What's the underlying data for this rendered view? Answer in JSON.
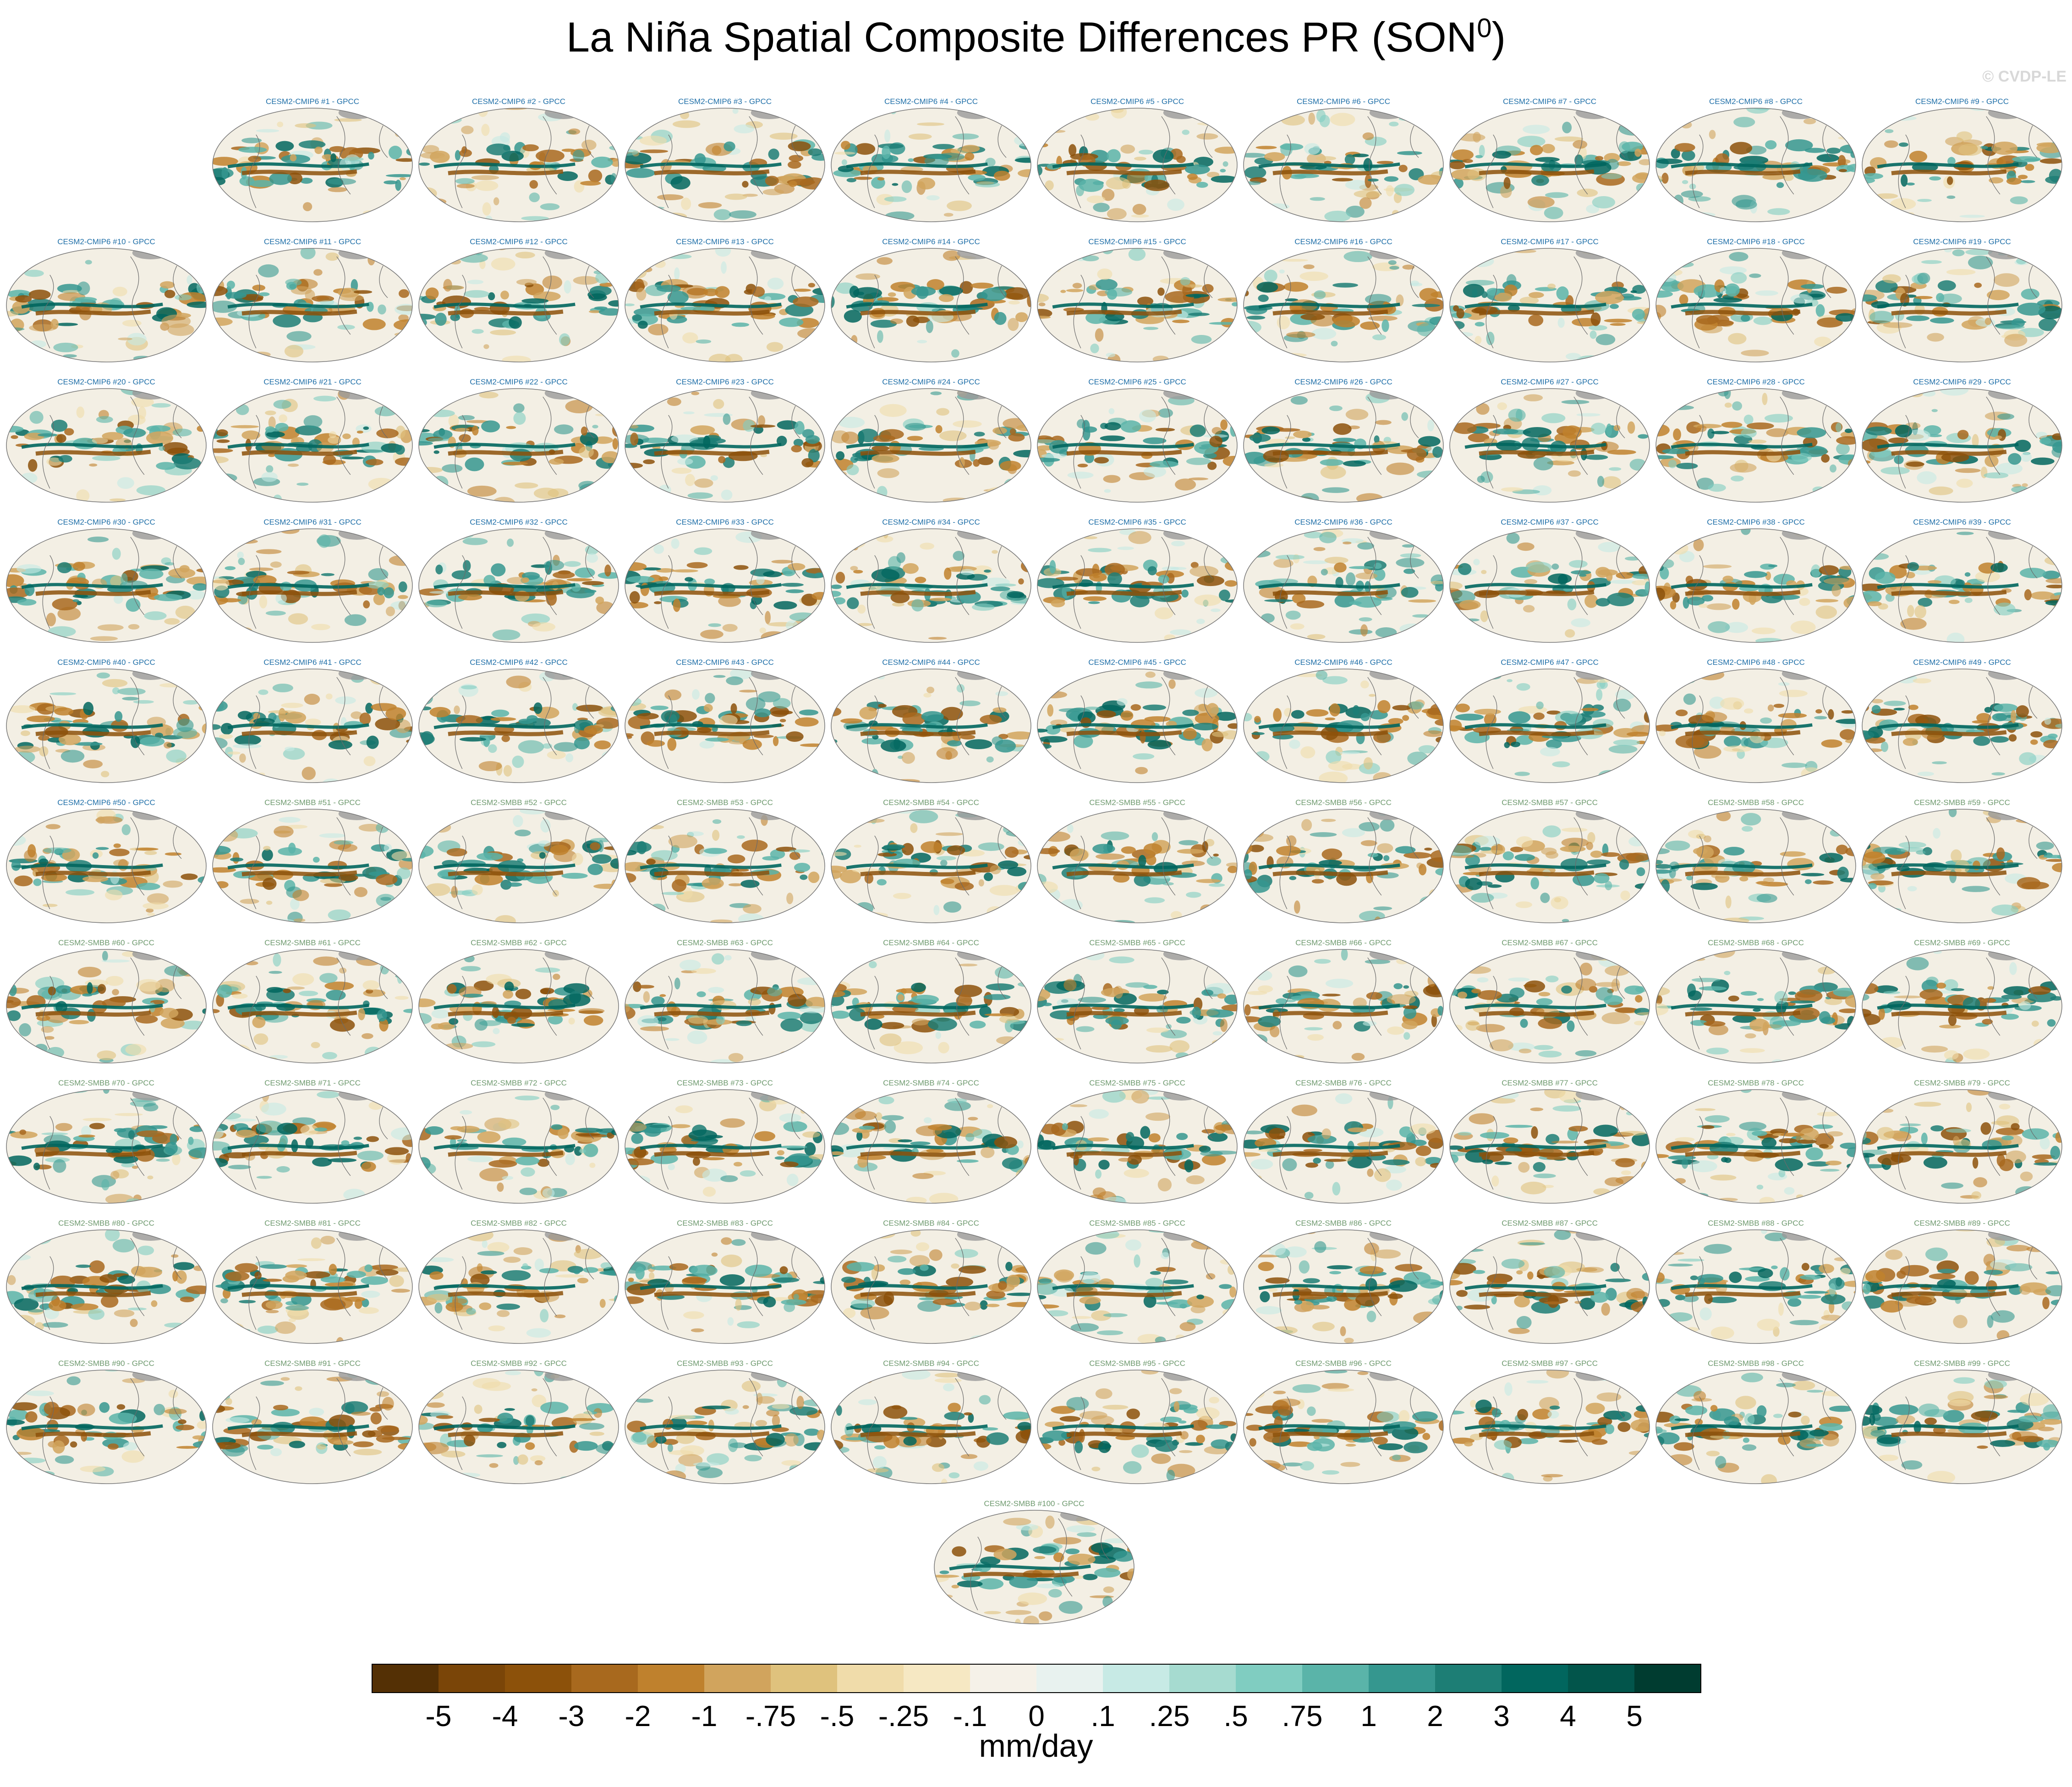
{
  "figure": {
    "title_main": "La Niña Spatial Composite Differences PR (SON",
    "title_sup": "0",
    "title_end": ")",
    "watermark": "© CVDP-LE",
    "units": "mm/day"
  },
  "colors": {
    "cmip6_title": "#1f6fa8",
    "smbb_title": "#6f9a6f"
  },
  "panels": [
    {
      "label": "CESM2-CMIP6 #1 - GPCC",
      "ens": "CMIP6"
    },
    {
      "label": "CESM2-CMIP6 #2 - GPCC",
      "ens": "CMIP6"
    },
    {
      "label": "CESM2-CMIP6 #3 - GPCC",
      "ens": "CMIP6"
    },
    {
      "label": "CESM2-CMIP6 #4 - GPCC",
      "ens": "CMIP6"
    },
    {
      "label": "CESM2-CMIP6 #5 - GPCC",
      "ens": "CMIP6"
    },
    {
      "label": "CESM2-CMIP6 #6 - GPCC",
      "ens": "CMIP6"
    },
    {
      "label": "CESM2-CMIP6 #7 - GPCC",
      "ens": "CMIP6"
    },
    {
      "label": "CESM2-CMIP6 #8 - GPCC",
      "ens": "CMIP6"
    },
    {
      "label": "CESM2-CMIP6 #9 - GPCC",
      "ens": "CMIP6"
    },
    {
      "label": "CESM2-CMIP6 #10 - GPCC",
      "ens": "CMIP6"
    },
    {
      "label": "CESM2-CMIP6 #11 - GPCC",
      "ens": "CMIP6"
    },
    {
      "label": "CESM2-CMIP6 #12 - GPCC",
      "ens": "CMIP6"
    },
    {
      "label": "CESM2-CMIP6 #13 - GPCC",
      "ens": "CMIP6"
    },
    {
      "label": "CESM2-CMIP6 #14 - GPCC",
      "ens": "CMIP6"
    },
    {
      "label": "CESM2-CMIP6 #15 - GPCC",
      "ens": "CMIP6"
    },
    {
      "label": "CESM2-CMIP6 #16 - GPCC",
      "ens": "CMIP6"
    },
    {
      "label": "CESM2-CMIP6 #17 - GPCC",
      "ens": "CMIP6"
    },
    {
      "label": "CESM2-CMIP6 #18 - GPCC",
      "ens": "CMIP6"
    },
    {
      "label": "CESM2-CMIP6 #19 - GPCC",
      "ens": "CMIP6"
    },
    {
      "label": "CESM2-CMIP6 #20 - GPCC",
      "ens": "CMIP6"
    },
    {
      "label": "CESM2-CMIP6 #21 - GPCC",
      "ens": "CMIP6"
    },
    {
      "label": "CESM2-CMIP6 #22 - GPCC",
      "ens": "CMIP6"
    },
    {
      "label": "CESM2-CMIP6 #23 - GPCC",
      "ens": "CMIP6"
    },
    {
      "label": "CESM2-CMIP6 #24 - GPCC",
      "ens": "CMIP6"
    },
    {
      "label": "CESM2-CMIP6 #25 - GPCC",
      "ens": "CMIP6"
    },
    {
      "label": "CESM2-CMIP6 #26 - GPCC",
      "ens": "CMIP6"
    },
    {
      "label": "CESM2-CMIP6 #27 - GPCC",
      "ens": "CMIP6"
    },
    {
      "label": "CESM2-CMIP6 #28 - GPCC",
      "ens": "CMIP6"
    },
    {
      "label": "CESM2-CMIP6 #29 - GPCC",
      "ens": "CMIP6"
    },
    {
      "label": "CESM2-CMIP6 #30 - GPCC",
      "ens": "CMIP6"
    },
    {
      "label": "CESM2-CMIP6 #31 - GPCC",
      "ens": "CMIP6"
    },
    {
      "label": "CESM2-CMIP6 #32 - GPCC",
      "ens": "CMIP6"
    },
    {
      "label": "CESM2-CMIP6 #33 - GPCC",
      "ens": "CMIP6"
    },
    {
      "label": "CESM2-CMIP6 #34 - GPCC",
      "ens": "CMIP6"
    },
    {
      "label": "CESM2-CMIP6 #35 - GPCC",
      "ens": "CMIP6"
    },
    {
      "label": "CESM2-CMIP6 #36 - GPCC",
      "ens": "CMIP6"
    },
    {
      "label": "CESM2-CMIP6 #37 - GPCC",
      "ens": "CMIP6"
    },
    {
      "label": "CESM2-CMIP6 #38 - GPCC",
      "ens": "CMIP6"
    },
    {
      "label": "CESM2-CMIP6 #39 - GPCC",
      "ens": "CMIP6"
    },
    {
      "label": "CESM2-CMIP6 #40 - GPCC",
      "ens": "CMIP6"
    },
    {
      "label": "CESM2-CMIP6 #41 - GPCC",
      "ens": "CMIP6"
    },
    {
      "label": "CESM2-CMIP6 #42 - GPCC",
      "ens": "CMIP6"
    },
    {
      "label": "CESM2-CMIP6 #43 - GPCC",
      "ens": "CMIP6"
    },
    {
      "label": "CESM2-CMIP6 #44 - GPCC",
      "ens": "CMIP6"
    },
    {
      "label": "CESM2-CMIP6 #45 - GPCC",
      "ens": "CMIP6"
    },
    {
      "label": "CESM2-CMIP6 #46 - GPCC",
      "ens": "CMIP6"
    },
    {
      "label": "CESM2-CMIP6 #47 - GPCC",
      "ens": "CMIP6"
    },
    {
      "label": "CESM2-CMIP6 #48 - GPCC",
      "ens": "CMIP6"
    },
    {
      "label": "CESM2-CMIP6 #49 - GPCC",
      "ens": "CMIP6"
    },
    {
      "label": "CESM2-CMIP6 #50 - GPCC",
      "ens": "CMIP6"
    },
    {
      "label": "CESM2-SMBB #51 - GPCC",
      "ens": "SMBB"
    },
    {
      "label": "CESM2-SMBB #52 - GPCC",
      "ens": "SMBB"
    },
    {
      "label": "CESM2-SMBB #53 - GPCC",
      "ens": "SMBB"
    },
    {
      "label": "CESM2-SMBB #54 - GPCC",
      "ens": "SMBB"
    },
    {
      "label": "CESM2-SMBB #55 - GPCC",
      "ens": "SMBB"
    },
    {
      "label": "CESM2-SMBB #56 - GPCC",
      "ens": "SMBB"
    },
    {
      "label": "CESM2-SMBB #57 - GPCC",
      "ens": "SMBB"
    },
    {
      "label": "CESM2-SMBB #58 - GPCC",
      "ens": "SMBB"
    },
    {
      "label": "CESM2-SMBB #59 - GPCC",
      "ens": "SMBB"
    },
    {
      "label": "CESM2-SMBB #60 - GPCC",
      "ens": "SMBB"
    },
    {
      "label": "CESM2-SMBB #61 - GPCC",
      "ens": "SMBB"
    },
    {
      "label": "CESM2-SMBB #62 - GPCC",
      "ens": "SMBB"
    },
    {
      "label": "CESM2-SMBB #63 - GPCC",
      "ens": "SMBB"
    },
    {
      "label": "CESM2-SMBB #64 - GPCC",
      "ens": "SMBB"
    },
    {
      "label": "CESM2-SMBB #65 - GPCC",
      "ens": "SMBB"
    },
    {
      "label": "CESM2-SMBB #66 - GPCC",
      "ens": "SMBB"
    },
    {
      "label": "CESM2-SMBB #67 - GPCC",
      "ens": "SMBB"
    },
    {
      "label": "CESM2-SMBB #68 - GPCC",
      "ens": "SMBB"
    },
    {
      "label": "CESM2-SMBB #69 - GPCC",
      "ens": "SMBB"
    },
    {
      "label": "CESM2-SMBB #70 - GPCC",
      "ens": "SMBB"
    },
    {
      "label": "CESM2-SMBB #71 - GPCC",
      "ens": "SMBB"
    },
    {
      "label": "CESM2-SMBB #72 - GPCC",
      "ens": "SMBB"
    },
    {
      "label": "CESM2-SMBB #73 - GPCC",
      "ens": "SMBB"
    },
    {
      "label": "CESM2-SMBB #74 - GPCC",
      "ens": "SMBB"
    },
    {
      "label": "CESM2-SMBB #75 - GPCC",
      "ens": "SMBB"
    },
    {
      "label": "CESM2-SMBB #76 - GPCC",
      "ens": "SMBB"
    },
    {
      "label": "CESM2-SMBB #77 - GPCC",
      "ens": "SMBB"
    },
    {
      "label": "CESM2-SMBB #78 - GPCC",
      "ens": "SMBB"
    },
    {
      "label": "CESM2-SMBB #79 - GPCC",
      "ens": "SMBB"
    },
    {
      "label": "CESM2-SMBB #80 - GPCC",
      "ens": "SMBB"
    },
    {
      "label": "CESM2-SMBB #81 - GPCC",
      "ens": "SMBB"
    },
    {
      "label": "CESM2-SMBB #82 - GPCC",
      "ens": "SMBB"
    },
    {
      "label": "CESM2-SMBB #83 - GPCC",
      "ens": "SMBB"
    },
    {
      "label": "CESM2-SMBB #84 - GPCC",
      "ens": "SMBB"
    },
    {
      "label": "CESM2-SMBB #85 - GPCC",
      "ens": "SMBB"
    },
    {
      "label": "CESM2-SMBB #86 - GPCC",
      "ens": "SMBB"
    },
    {
      "label": "CESM2-SMBB #87 - GPCC",
      "ens": "SMBB"
    },
    {
      "label": "CESM2-SMBB #88 - GPCC",
      "ens": "SMBB"
    },
    {
      "label": "CESM2-SMBB #89 - GPCC",
      "ens": "SMBB"
    },
    {
      "label": "CESM2-SMBB #90 - GPCC",
      "ens": "SMBB"
    },
    {
      "label": "CESM2-SMBB #91 - GPCC",
      "ens": "SMBB"
    },
    {
      "label": "CESM2-SMBB #92 - GPCC",
      "ens": "SMBB"
    },
    {
      "label": "CESM2-SMBB #93 - GPCC",
      "ens": "SMBB"
    },
    {
      "label": "CESM2-SMBB #94 - GPCC",
      "ens": "SMBB"
    },
    {
      "label": "CESM2-SMBB #95 - GPCC",
      "ens": "SMBB"
    },
    {
      "label": "CESM2-SMBB #96 - GPCC",
      "ens": "SMBB"
    },
    {
      "label": "CESM2-SMBB #97 - GPCC",
      "ens": "SMBB"
    },
    {
      "label": "CESM2-SMBB #98 - GPCC",
      "ens": "SMBB"
    },
    {
      "label": "CESM2-SMBB #99 - GPCC",
      "ens": "SMBB"
    },
    {
      "label": "CESM2-SMBB #100 - GPCC",
      "ens": "SMBB"
    }
  ],
  "colorbar": {
    "labels": [
      "-5",
      "-4",
      "-3",
      "-2",
      "-1",
      "-.75",
      "-.5",
      "-.25",
      "-.1",
      "0",
      ".1",
      ".25",
      ".5",
      ".75",
      "1",
      "2",
      "3",
      "4",
      "5"
    ],
    "colors": [
      "#543005",
      "#7a4508",
      "#8c510a",
      "#a8691e",
      "#bf812d",
      "#d1a45d",
      "#dfc27d",
      "#f0dcaa",
      "#f6e8c3",
      "#f5f1e8",
      "#e8f2ef",
      "#c7eae5",
      "#a6dbd0",
      "#80cdc1",
      "#5ab4a9",
      "#35978f",
      "#1d7e75",
      "#01665e",
      "#02554b",
      "#003c30"
    ]
  }
}
